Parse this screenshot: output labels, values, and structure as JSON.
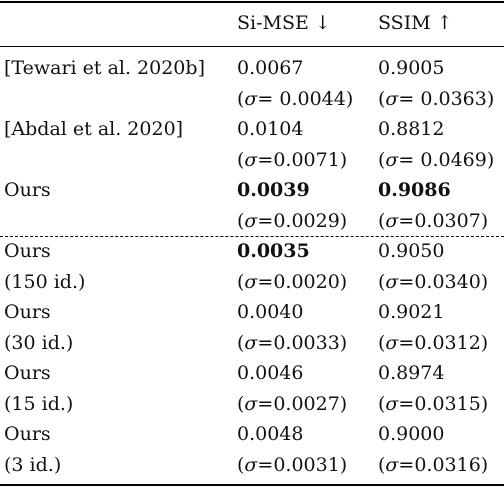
{
  "table": {
    "header": [
      "",
      "Si-MSE ↓",
      "SSIM ↑"
    ],
    "rows": [
      {
        "method": "[Tewari et al. 2020b]",
        "method_sub": "",
        "simse": "0.0067",
        "simse_sd": "0.0044",
        "simse_sd_sep": " ",
        "ssim": "0.9005",
        "ssim_sd": "0.0363",
        "ssim_sd_sep": " ",
        "simse_bold": false,
        "ssim_bold": false
      },
      {
        "method": "[Abdal et al. 2020]",
        "method_sub": "",
        "simse": "0.0104",
        "simse_sd": "0.0071",
        "simse_sd_sep": "",
        "ssim": "0.8812",
        "ssim_sd": "0.0469",
        "ssim_sd_sep": " ",
        "simse_bold": false,
        "ssim_bold": false
      },
      {
        "method": "Ours",
        "method_sub": "",
        "simse": "0.0039",
        "simse_sd": "0.0029",
        "simse_sd_sep": "",
        "ssim": "0.9086",
        "ssim_sd": "0.0307",
        "ssim_sd_sep": "",
        "simse_bold": true,
        "ssim_bold": true
      },
      {
        "method": "Ours",
        "method_sub": "(150 id.)",
        "simse": "0.0035",
        "simse_sd": "0.0020",
        "simse_sd_sep": "",
        "ssim": "0.9050",
        "ssim_sd": "0.0340",
        "ssim_sd_sep": "",
        "simse_bold": true,
        "ssim_bold": false
      },
      {
        "method": "Ours",
        "method_sub": "(30 id.)",
        "simse": "0.0040",
        "simse_sd": "0.0033",
        "simse_sd_sep": "",
        "ssim": "0.9021",
        "ssim_sd": "0.0312",
        "ssim_sd_sep": "",
        "simse_bold": false,
        "ssim_bold": false
      },
      {
        "method": "Ours",
        "method_sub": "(15 id.)",
        "simse": "0.0046",
        "simse_sd": "0.0027",
        "simse_sd_sep": "",
        "ssim": "0.8974",
        "ssim_sd": "0.0315",
        "ssim_sd_sep": "",
        "simse_bold": false,
        "ssim_bold": false
      },
      {
        "method": "Ours",
        "method_sub": "(3 id.)",
        "simse": "0.0048",
        "simse_sd": "0.0031",
        "simse_sd_sep": "",
        "ssim": "0.9000",
        "ssim_sd": "0.0316",
        "ssim_sd_sep": "",
        "simse_bold": false,
        "ssim_bold": false
      }
    ]
  }
}
